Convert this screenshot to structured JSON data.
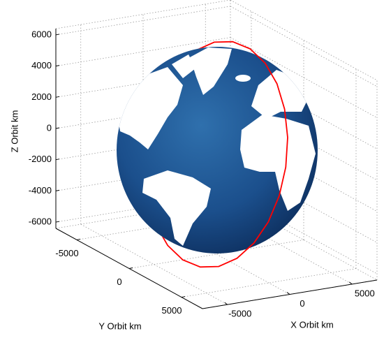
{
  "chart_data": {
    "type": "orbit3d",
    "xlabel": "X Orbit km",
    "ylabel": "Y Orbit km",
    "zlabel": "Z Orbit km",
    "xlim": [
      -7000,
      7000
    ],
    "ylim": [
      -7000,
      7000
    ],
    "zlim": [
      -6400,
      6400
    ],
    "xticks": [
      -5000,
      0,
      5000
    ],
    "yticks": [
      -5000,
      0,
      5000
    ],
    "zticks": [
      -6000,
      -4000,
      -2000,
      0,
      2000,
      4000,
      6000
    ],
    "grid": true,
    "series": [
      {
        "color": "#ff0000",
        "x": [
          2457,
          2165,
          1725,
          1168,
          532,
          -142,
          -805,
          -1414,
          -1926,
          -2306,
          -2531,
          -2581,
          -2457,
          -2165,
          -1725,
          -1168,
          -532,
          142,
          805,
          1414,
          1926,
          2306,
          2531,
          2581
        ],
        "y": [
          287,
          2077,
          3725,
          5117,
          6164,
          6789,
          6951,
          6641,
          5876,
          4711,
          3227,
          1523,
          -287,
          -2077,
          -3725,
          -5117,
          -6164,
          -6789,
          -6951,
          -6641,
          -5876,
          -4711,
          -3227,
          -1523
        ],
        "z": [
          6545,
          6322,
          5668,
          4627,
          3273,
          1695,
          0,
          -1695,
          -3273,
          -4627,
          -5668,
          -6322,
          -6545,
          -6322,
          -5668,
          -4627,
          -3273,
          -1695,
          0,
          1695,
          3273,
          4627,
          5668,
          6322
        ]
      }
    ]
  }
}
